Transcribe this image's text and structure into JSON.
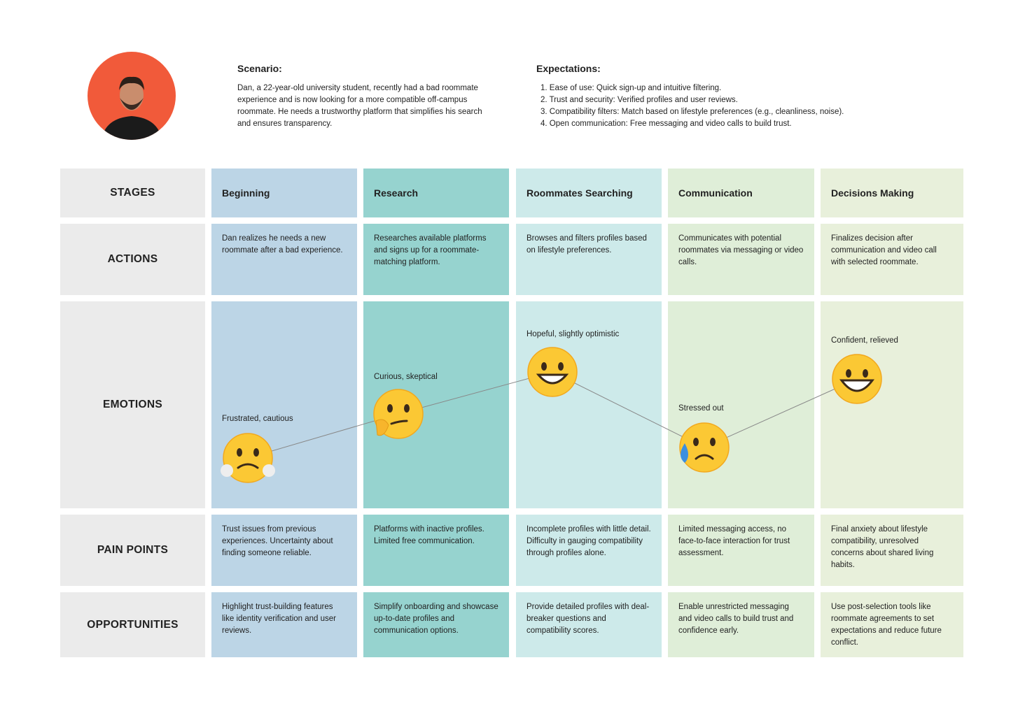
{
  "persona": {
    "scenario": {
      "title": "Scenario:",
      "text": "Dan, a 22-year-old university student, recently had a bad roommate experience and is now looking for a more compatible off-campus roommate. He needs a trustworthy platform that simplifies his search and ensures transparency."
    },
    "expectations": {
      "title": "Expectations:",
      "items": [
        "1. Ease of use: Quick sign-up and intuitive filtering.",
        "2. Trust and security: Verified profiles and user reviews.",
        "3. Compatibility filters: Match based on lifestyle preferences (e.g., cleanliness, noise).",
        "4. Open communication: Free messaging and video calls to build trust."
      ]
    }
  },
  "row_labels": [
    "STAGES",
    "ACTIONS",
    "EMOTIONS",
    "PAIN POINTS",
    "OPPORTUNITIES"
  ],
  "stages": [
    {
      "name": "Beginning",
      "action": "Dan realizes he needs a new roommate after a bad experience.",
      "emotion": "Frustrated, cautious",
      "pain_point": "Trust issues from previous experiences. Uncertainty about finding someone reliable.",
      "opportunity": "Highlight trust-building features like identity verification and user reviews."
    },
    {
      "name": "Research",
      "action": "Researches available platforms and signs up for a roommate-matching platform.",
      "emotion": "Curious, skeptical",
      "pain_point": "Platforms with inactive profiles. Limited free communication.",
      "opportunity": "Simplify onboarding and showcase up-to-date profiles and communication options."
    },
    {
      "name": "Roommates Searching",
      "action": "Browses and filters profiles based on lifestyle preferences.",
      "emotion": "Hopeful, slightly optimistic",
      "pain_point": "Incomplete profiles with little detail. Difficulty in gauging compatibility through profiles alone.",
      "opportunity": "Provide detailed profiles with deal-breaker questions and compatibility scores."
    },
    {
      "name": "Communication",
      "action": "Communicates with potential roommates via messaging or video calls.",
      "emotion": "Stressed out",
      "pain_point": "Limited messaging access, no face-to-face interaction for trust assessment.",
      "opportunity": "Enable unrestricted messaging and video calls to build trust and confidence early."
    },
    {
      "name": "Decisions Making",
      "action": "Finalizes decision after communication and video call with selected roommate.",
      "emotion": "Confident, relieved",
      "pain_point": "Final anxiety about lifestyle compatibility, unresolved concerns about shared living habits.",
      "opportunity": "Use post-selection tools like roommate agreements to set expectations and reduce future conflict."
    }
  ]
}
